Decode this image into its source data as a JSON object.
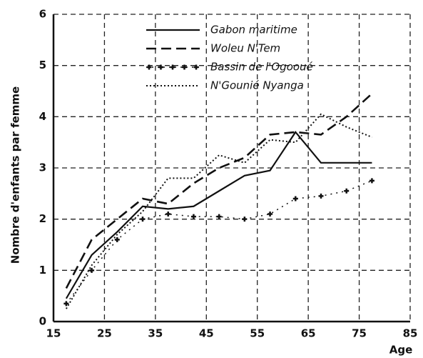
{
  "chart_data": {
    "type": "line",
    "xlabel": "Age",
    "ylabel": "Nombre d'enfants par femme",
    "x": [
      17.5,
      22.5,
      27.5,
      32.5,
      37.5,
      42.5,
      47.5,
      52.5,
      57.5,
      62.5,
      67.5,
      72.5,
      77.5
    ],
    "series": [
      {
        "name": "Gabon maritime",
        "color": "#111111",
        "line_style": "solid",
        "values": [
          0.45,
          1.3,
          1.75,
          2.25,
          2.2,
          2.25,
          2.55,
          2.85,
          2.95,
          3.7,
          3.1,
          3.1,
          3.1
        ]
      },
      {
        "name": "Woleu N'Tem",
        "color": "#111111",
        "line_style": "dashed",
        "values": [
          0.65,
          1.6,
          2.0,
          2.4,
          2.3,
          2.7,
          3.0,
          3.2,
          3.65,
          3.7,
          3.65,
          4.0,
          4.45
        ]
      },
      {
        "name": "Bassin de l'Ogooué",
        "color": "#111111",
        "line_style": "plus",
        "values": [
          0.35,
          1.0,
          1.6,
          2.0,
          2.1,
          2.05,
          2.05,
          2.0,
          2.1,
          2.4,
          2.45,
          2.55,
          2.75
        ]
      },
      {
        "name": "N'Gounié Nyanga",
        "color": "#111111",
        "line_style": "dotted",
        "values": [
          0.25,
          1.1,
          1.7,
          2.15,
          2.8,
          2.8,
          3.25,
          3.1,
          3.55,
          3.5,
          4.05,
          3.8,
          3.6
        ]
      }
    ],
    "xlim": [
      15,
      85
    ],
    "xticks": [
      15,
      25,
      35,
      45,
      55,
      65,
      75,
      85
    ],
    "ylim": [
      0,
      6
    ],
    "yticks": [
      0,
      1,
      2,
      3,
      4,
      5,
      6
    ],
    "grid": true,
    "legend": "upper right"
  }
}
